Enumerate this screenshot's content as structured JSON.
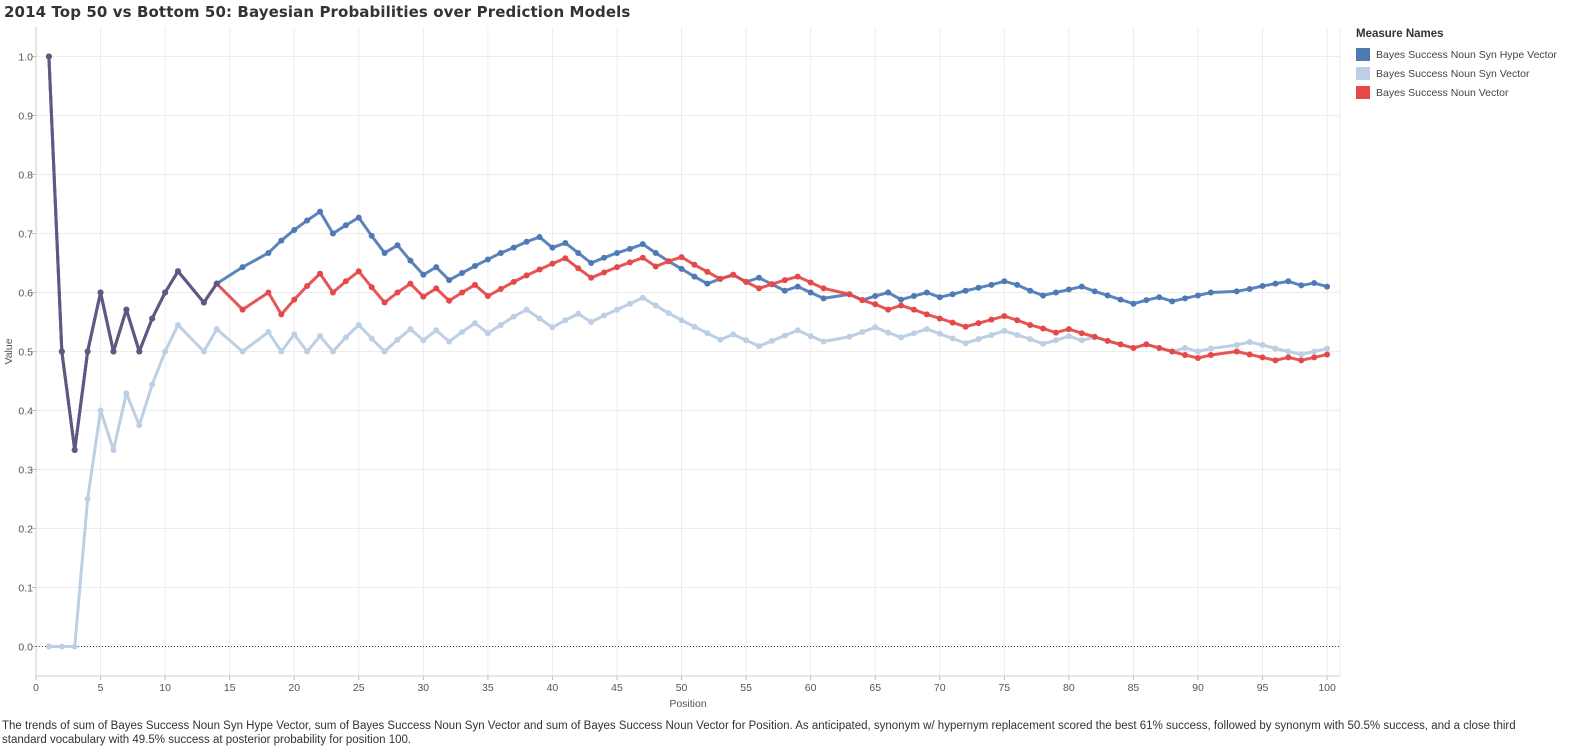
{
  "title": "2014 Top 50 vs Bottom 50: Bayesian Probabilities over Prediction Models",
  "caption": "The trends of sum of Bayes Success Noun Syn Hype Vector, sum of Bayes Success Noun Syn Vector and sum of Bayes Success Noun Vector for Position.  As anticipated, synonym w/ hypernym replacement scored the best 61% success, followed by synonym with 50.5% success, and a close third standard vocabulary with 49.5% success at posterior probability for position 100.",
  "legend": {
    "title": "Measure Names",
    "placement": "top-right"
  },
  "colors": {
    "hype": "#4e79b4",
    "syn": "#bccfe4",
    "noun": "#e44848",
    "overlap": "#5b5a86"
  },
  "chart_data": {
    "type": "line",
    "xlabel": "Position",
    "ylabel": "Value",
    "xlim": [
      0,
      101
    ],
    "ylim": [
      -0.05,
      1.05
    ],
    "x_ticks": [
      0,
      5,
      10,
      15,
      20,
      25,
      30,
      35,
      40,
      45,
      50,
      55,
      60,
      65,
      70,
      75,
      80,
      85,
      90,
      95,
      100
    ],
    "y_ticks": [
      "0.0",
      "0.1",
      "0.2",
      "0.3",
      "0.4",
      "0.5",
      "0.6",
      "0.7",
      "0.8",
      "0.9",
      "1.0"
    ],
    "grid": true,
    "reference_line": 0,
    "x_start": 1,
    "series": [
      {
        "name": "Bayes Success Noun Syn Hype Vector",
        "values": [
          1.0,
          0.5,
          0.333,
          0.5,
          0.6,
          0.5,
          0.571,
          0.5,
          0.556,
          0.6,
          0.636,
          null,
          0.583,
          0.615,
          null,
          0.643,
          null,
          0.667,
          0.688,
          0.706,
          0.722,
          0.737,
          0.7,
          0.714,
          0.727,
          0.696,
          0.667,
          0.68,
          0.654,
          0.63,
          0.643,
          0.621,
          0.633,
          0.645,
          0.656,
          0.667,
          0.676,
          0.686,
          0.694,
          0.676,
          0.684,
          0.667,
          0.65,
          0.659,
          0.667,
          0.674,
          0.682,
          0.667,
          0.653,
          0.64,
          0.627,
          0.615,
          0.623,
          0.63,
          0.618,
          0.625,
          0.614,
          0.603,
          0.61,
          0.6,
          0.59,
          null,
          0.597,
          0.587,
          0.594,
          0.6,
          0.588,
          0.594,
          0.6,
          0.592,
          0.597,
          0.603,
          0.608,
          0.613,
          0.619,
          0.613,
          0.603,
          0.595,
          0.6,
          0.605,
          0.61,
          0.602,
          0.595,
          0.588,
          0.581,
          0.587,
          0.592,
          0.585,
          0.59,
          0.595,
          0.6,
          null,
          0.602,
          0.606,
          0.611,
          0.615,
          0.619,
          0.612,
          0.616,
          0.61
        ]
      },
      {
        "name": "Bayes Success Noun Syn Vector",
        "values": [
          0.0,
          0.0,
          0.0,
          0.25,
          0.4,
          0.333,
          0.429,
          0.375,
          0.444,
          0.5,
          0.545,
          null,
          0.5,
          0.538,
          null,
          0.5,
          null,
          0.533,
          0.5,
          0.529,
          0.5,
          0.526,
          0.5,
          0.524,
          0.545,
          0.522,
          0.5,
          0.52,
          0.538,
          0.519,
          0.536,
          0.517,
          0.533,
          0.548,
          0.531,
          0.545,
          0.559,
          0.571,
          0.556,
          0.541,
          0.553,
          0.564,
          0.55,
          0.561,
          0.571,
          0.581,
          0.591,
          0.578,
          0.565,
          0.553,
          0.542,
          0.531,
          0.52,
          0.529,
          0.519,
          0.509,
          0.518,
          0.527,
          0.536,
          0.526,
          0.517,
          null,
          0.525,
          0.533,
          0.541,
          0.532,
          0.524,
          0.531,
          0.538,
          0.53,
          0.522,
          0.514,
          0.521,
          0.528,
          0.535,
          0.528,
          0.521,
          0.513,
          0.519,
          0.526,
          0.519,
          0.524,
          0.518,
          0.512,
          0.506,
          0.512,
          0.506,
          0.5,
          0.506,
          0.5,
          0.505,
          null,
          0.511,
          0.516,
          0.511,
          0.505,
          0.5,
          0.495,
          0.5,
          0.505
        ]
      },
      {
        "name": "Bayes Success Noun Vector",
        "values": [
          1.0,
          0.5,
          0.333,
          0.5,
          0.6,
          0.5,
          0.571,
          0.5,
          0.556,
          0.6,
          0.636,
          null,
          0.583,
          0.615,
          null,
          0.571,
          null,
          0.6,
          0.563,
          0.588,
          0.611,
          0.632,
          0.6,
          0.619,
          0.636,
          0.609,
          0.583,
          0.6,
          0.615,
          0.593,
          0.607,
          0.586,
          0.6,
          0.613,
          0.594,
          0.606,
          0.618,
          0.629,
          0.639,
          0.649,
          0.658,
          0.641,
          0.625,
          0.634,
          0.643,
          0.651,
          0.659,
          0.644,
          0.653,
          0.66,
          0.647,
          0.635,
          0.623,
          0.63,
          0.618,
          0.607,
          0.614,
          0.621,
          0.627,
          0.617,
          0.607,
          null,
          0.597,
          0.587,
          0.58,
          0.571,
          0.578,
          0.571,
          0.563,
          0.556,
          0.549,
          0.542,
          0.548,
          0.554,
          0.56,
          0.553,
          0.545,
          0.539,
          0.532,
          0.538,
          0.531,
          0.525,
          0.518,
          0.512,
          0.506,
          0.512,
          0.506,
          0.5,
          0.494,
          0.489,
          0.494,
          null,
          0.5,
          0.495,
          0.49,
          0.485,
          0.49,
          0.485,
          0.49,
          0.495
        ]
      }
    ]
  }
}
